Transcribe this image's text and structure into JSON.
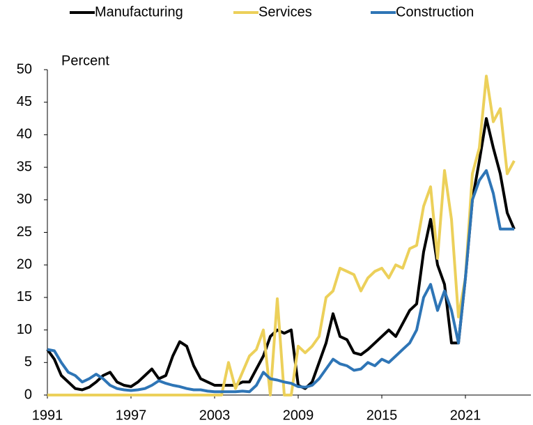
{
  "chart_data": {
    "type": "line",
    "y_label": "Percent",
    "x": [
      1991,
      1991.5,
      1992,
      1992.5,
      1993,
      1993.5,
      1994,
      1994.5,
      1995,
      1995.5,
      1996,
      1996.5,
      1997,
      1997.5,
      1998,
      1998.5,
      1999,
      1999.5,
      2000,
      2000.5,
      2001,
      2001.5,
      2002,
      2002.5,
      2003,
      2003.5,
      2004,
      2004.5,
      2005,
      2005.5,
      2006,
      2006.5,
      2007,
      2007.5,
      2008,
      2008.5,
      2009,
      2009.5,
      2010,
      2010.5,
      2011,
      2011.5,
      2012,
      2012.5,
      2013,
      2013.5,
      2014,
      2014.5,
      2015,
      2015.5,
      2016,
      2016.5,
      2017,
      2017.5,
      2018,
      2018.5,
      2019,
      2019.5,
      2020,
      2020.5,
      2021,
      2021.5,
      2022,
      2022.5,
      2023,
      2023.5,
      2024,
      2024.5
    ],
    "series": [
      {
        "name": "Manufacturing",
        "color": "#000000",
        "values": [
          7,
          5.5,
          3,
          2,
          1,
          0.8,
          1.2,
          2,
          3,
          3.5,
          2,
          1.5,
          1.3,
          2,
          3,
          4,
          2.5,
          3,
          6,
          8.2,
          7.5,
          4.5,
          2.5,
          2,
          1.5,
          1.5,
          1.5,
          1.5,
          2,
          2,
          4,
          6,
          9,
          10,
          9.5,
          10,
          1.5,
          1,
          2,
          5,
          8,
          12.5,
          9,
          8.5,
          6.5,
          6.2,
          7,
          8,
          9,
          10,
          9,
          11,
          13,
          14,
          22,
          27,
          20,
          17,
          8,
          8,
          18,
          30,
          36,
          42.5,
          38,
          34,
          28,
          25.5
        ]
      },
      {
        "name": "Services",
        "color": "#ecd05a",
        "values": [
          0,
          0,
          0,
          0,
          0,
          0,
          0,
          0,
          0,
          0,
          0,
          0,
          0,
          0,
          0,
          0,
          0,
          0,
          0,
          0,
          0,
          0,
          0,
          0,
          0,
          0,
          5,
          1,
          3.5,
          6,
          7,
          10,
          0,
          14.8,
          0,
          0,
          7.5,
          6.5,
          7.5,
          9,
          15,
          16,
          19.5,
          19,
          18.5,
          16,
          18,
          19,
          19.5,
          18,
          20,
          19.5,
          22.5,
          23,
          29,
          32,
          21,
          34.5,
          27,
          12,
          18,
          34,
          38,
          49,
          42,
          44,
          34,
          36
        ]
      },
      {
        "name": "Construction",
        "color": "#2e75b6",
        "values": [
          7,
          6.8,
          5,
          3.5,
          3,
          2,
          2.5,
          3.2,
          2.5,
          1.5,
          1,
          0.8,
          0.7,
          0.8,
          1,
          1.5,
          2.2,
          1.8,
          1.5,
          1.3,
          1,
          0.8,
          0.8,
          0.6,
          0.5,
          0.5,
          0.5,
          0.5,
          0.6,
          0.5,
          1.5,
          3.5,
          2.5,
          2.3,
          2,
          1.8,
          1.3,
          1.2,
          1.5,
          2.5,
          4,
          5.5,
          4.8,
          4.5,
          3.8,
          4,
          5,
          4.5,
          5.5,
          5,
          6,
          7,
          8,
          10,
          15,
          17,
          13,
          16,
          13,
          8,
          18,
          30,
          33,
          34.5,
          31,
          25.5,
          25.5,
          25.5
        ]
      }
    ],
    "xlim": [
      1991,
      2025.7
    ],
    "xticks": [
      1991,
      1997,
      2003,
      2009,
      2015,
      2021
    ],
    "ylim": [
      0,
      50
    ],
    "yticks": [
      0,
      5,
      10,
      15,
      20,
      25,
      30,
      35,
      40,
      45,
      50
    ],
    "grid": false,
    "legend": "top"
  }
}
